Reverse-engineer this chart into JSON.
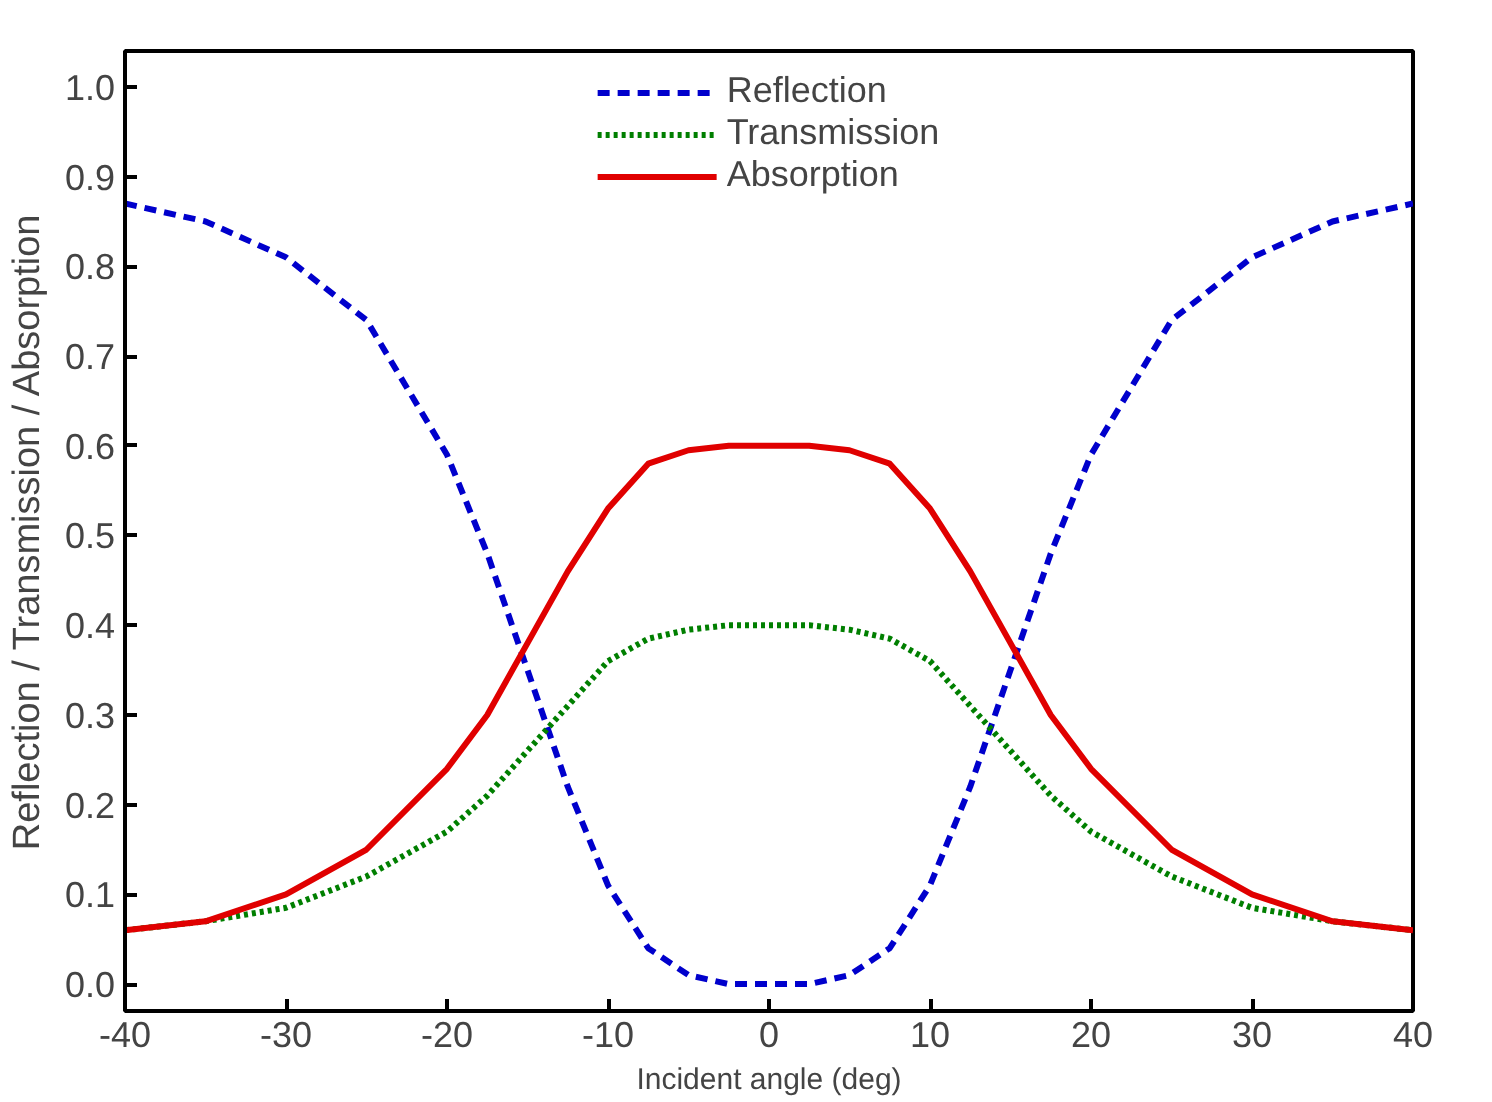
{
  "chart_data": {
    "type": "line",
    "xlabel": "Incident angle (deg)",
    "ylabel": "Reflection / Transmission / Absorption",
    "x": [
      -40,
      -35,
      -30,
      -25,
      -20,
      -17.5,
      -15,
      -12.5,
      -10,
      -7.5,
      -5,
      -2.5,
      0,
      2.5,
      5,
      7.5,
      10,
      12.5,
      15,
      17.5,
      20,
      25,
      30,
      35,
      40
    ],
    "series": [
      {
        "name": "Reflection",
        "color": "#0000cc",
        "line_style": "dashed",
        "values": [
          0.87,
          0.85,
          0.81,
          0.74,
          0.59,
          0.48,
          0.35,
          0.22,
          0.11,
          0.04,
          0.01,
          0.0,
          0.0,
          0.0,
          0.01,
          0.04,
          0.11,
          0.22,
          0.35,
          0.48,
          0.59,
          0.74,
          0.81,
          0.85,
          0.87
        ]
      },
      {
        "name": "Transmission",
        "color": "#007f00",
        "line_style": "dotted",
        "values": [
          0.06,
          0.07,
          0.085,
          0.12,
          0.17,
          0.21,
          0.26,
          0.31,
          0.36,
          0.385,
          0.395,
          0.4,
          0.4,
          0.4,
          0.395,
          0.385,
          0.36,
          0.31,
          0.26,
          0.21,
          0.17,
          0.12,
          0.085,
          0.07,
          0.06
        ]
      },
      {
        "name": "Absorption",
        "color": "#e00000",
        "line_style": "solid",
        "values": [
          0.06,
          0.07,
          0.1,
          0.15,
          0.24,
          0.3,
          0.38,
          0.46,
          0.53,
          0.58,
          0.595,
          0.6,
          0.6,
          0.6,
          0.595,
          0.58,
          0.53,
          0.46,
          0.38,
          0.3,
          0.24,
          0.15,
          0.1,
          0.07,
          0.06
        ]
      }
    ],
    "xlim": [
      -40,
      40
    ],
    "ylim": [
      -0.03,
      1.04
    ],
    "xticks": [
      -40,
      -30,
      -20,
      -10,
      0,
      10,
      20,
      30,
      40
    ],
    "yticks": [
      {
        "value": 0,
        "label": "0.0"
      },
      0.1,
      0.2,
      0.3,
      0.4,
      0.5,
      0.6,
      0.7,
      0.8,
      0.9,
      {
        "value": 1,
        "label": "1.0"
      }
    ],
    "grid": false,
    "legend": "top",
    "marker": "none"
  }
}
